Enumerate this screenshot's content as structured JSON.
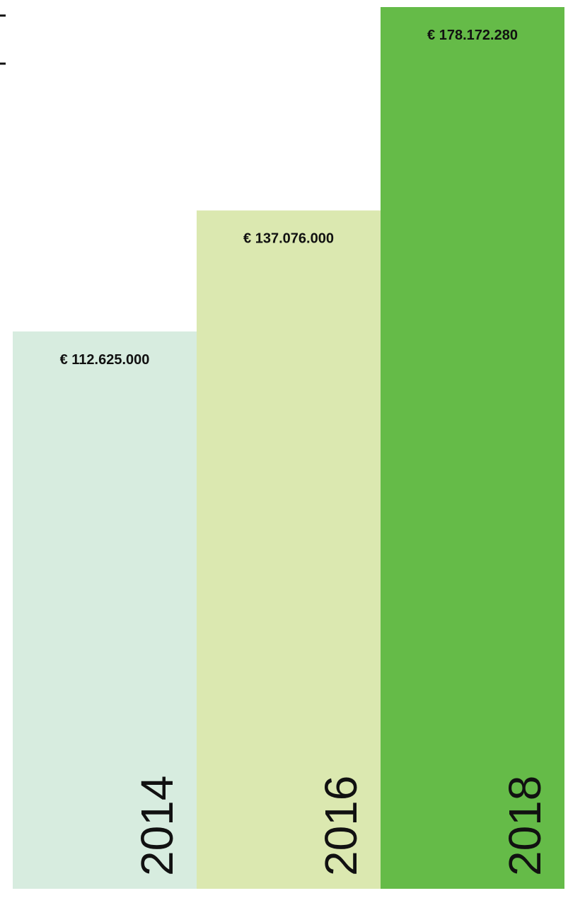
{
  "chart_data": {
    "type": "bar",
    "categories": [
      "2014",
      "2016",
      "2018"
    ],
    "values": [
      112625000,
      137076000,
      178172280
    ],
    "value_labels": [
      "€ 112.625.000",
      "€ 137.076.000",
      "€ 178.172.280"
    ],
    "colors": [
      "#d7ecdf",
      "#dbe8b0",
      "#65bb48"
    ]
  }
}
